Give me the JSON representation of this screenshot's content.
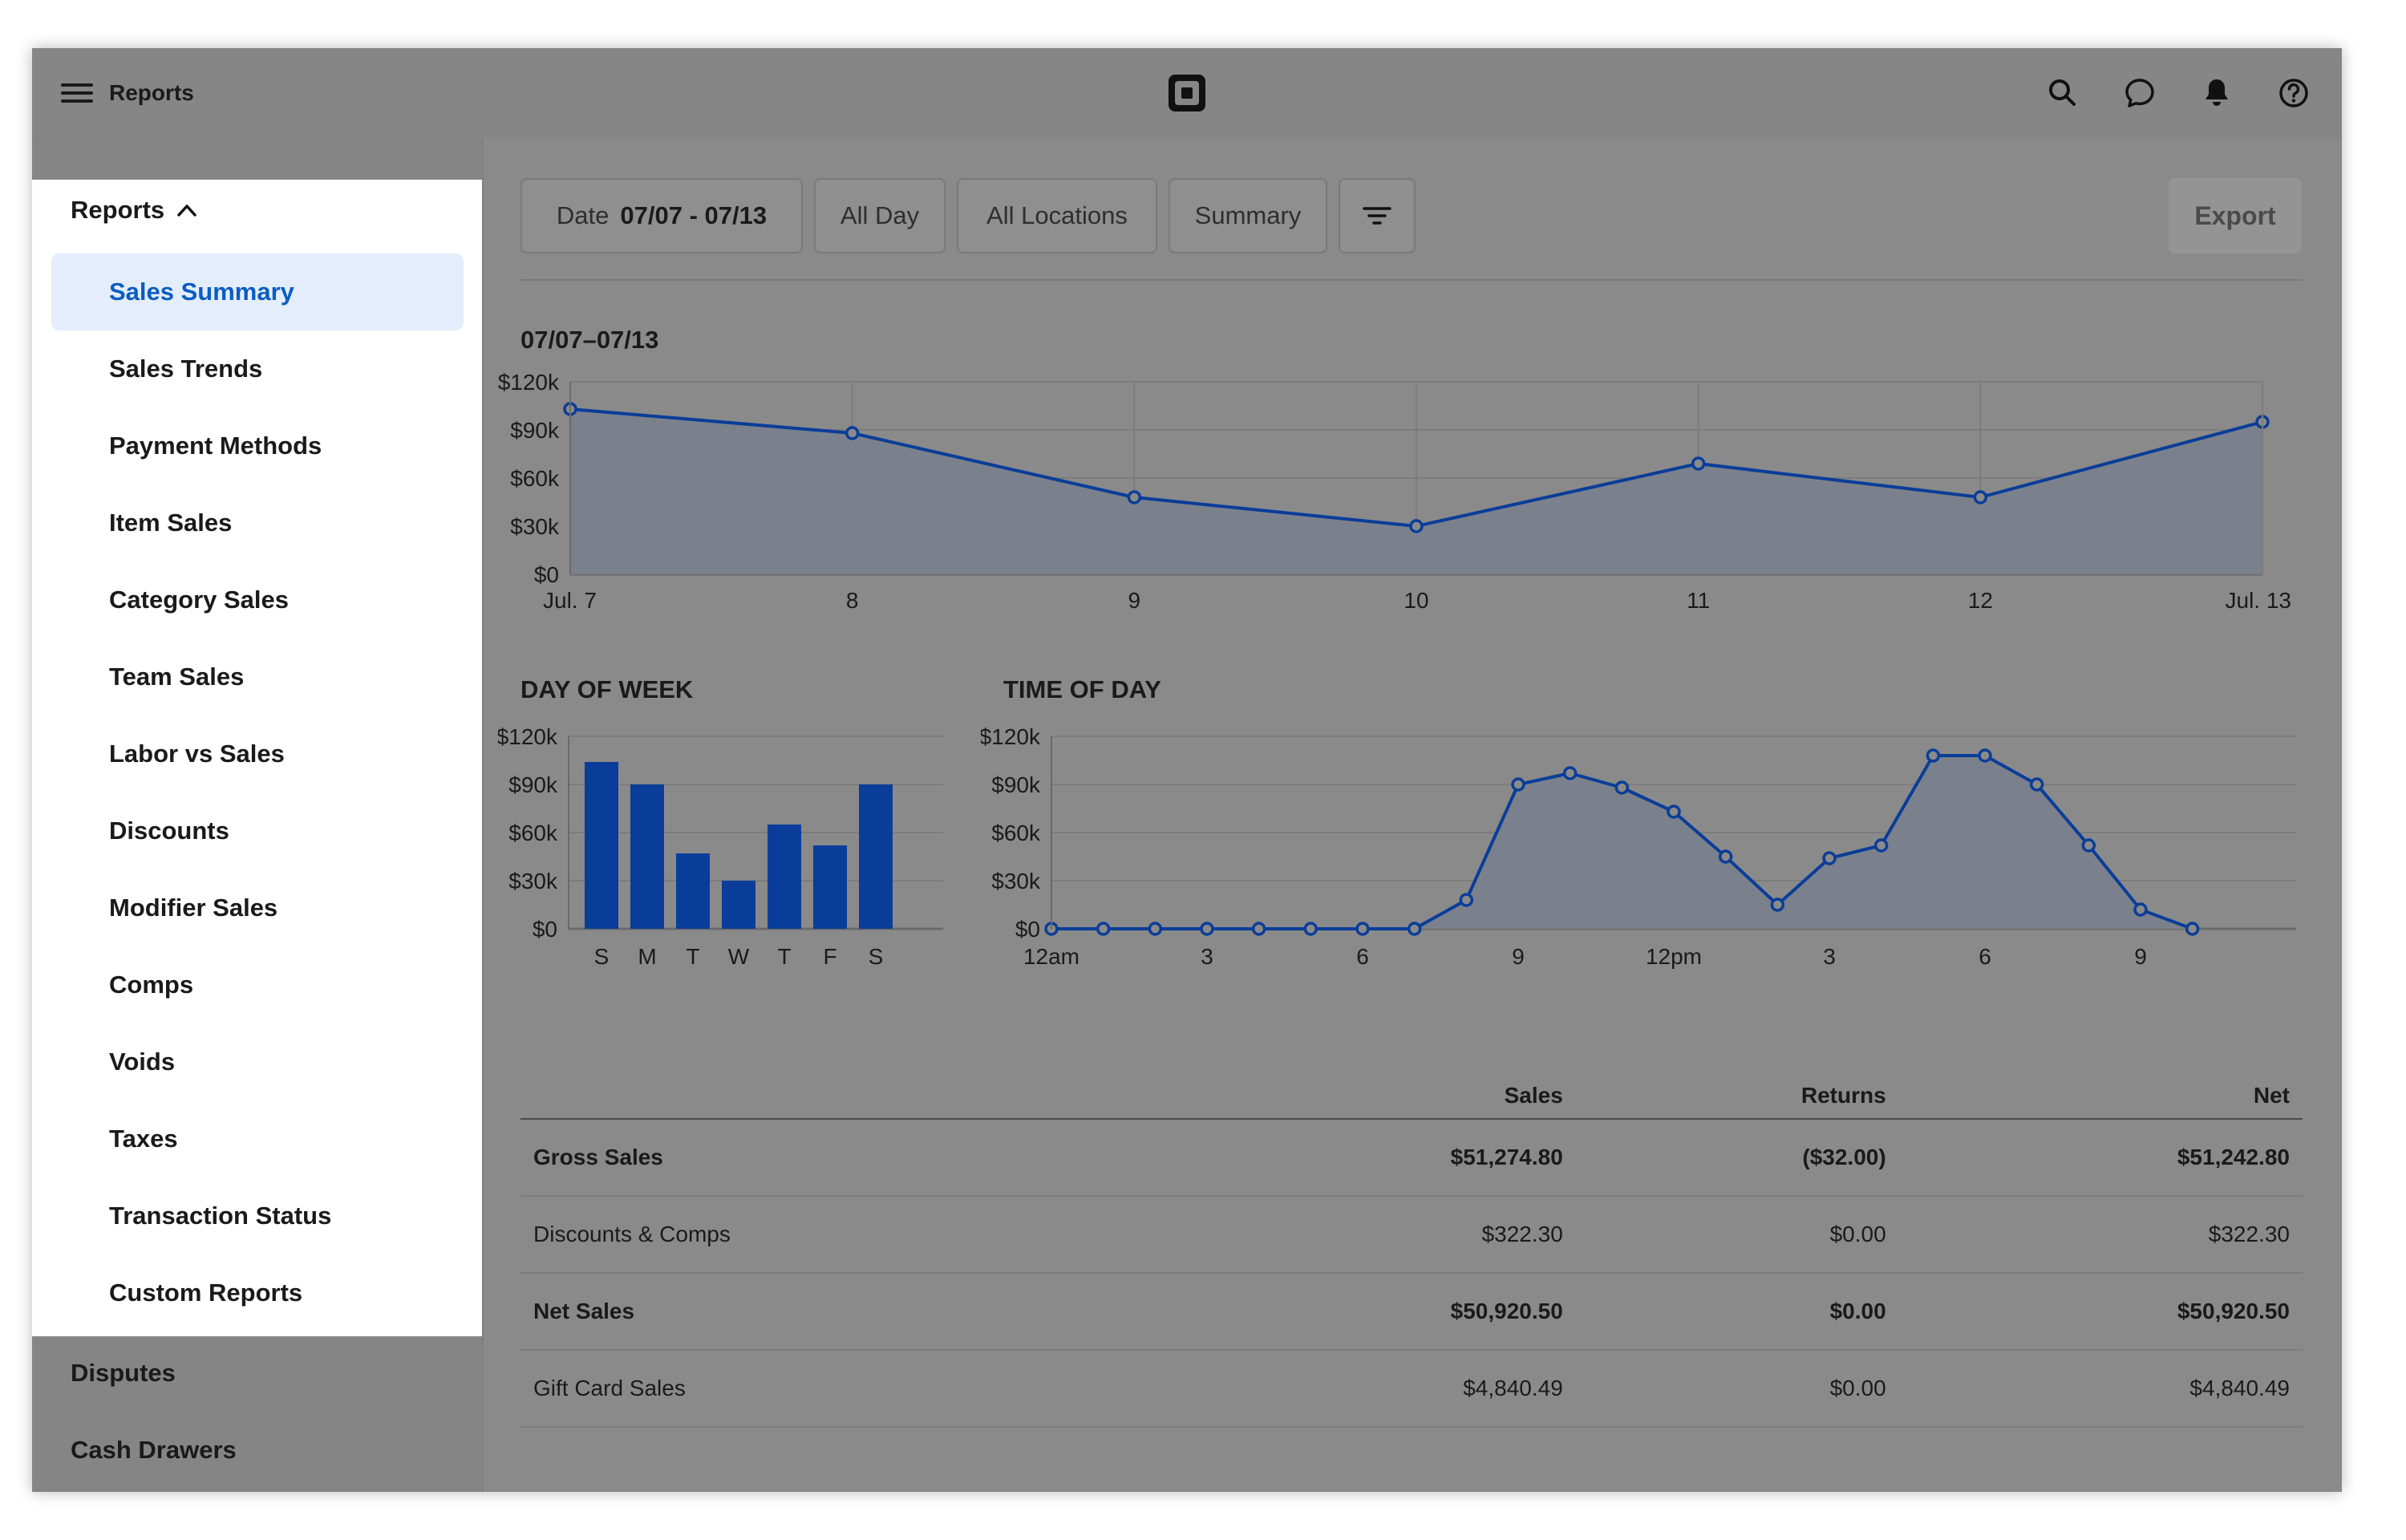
{
  "header": {
    "title": "Reports"
  },
  "sidebar": {
    "group_label": "Reports",
    "items": [
      {
        "label": "Sales Summary",
        "active": true
      },
      {
        "label": "Sales Trends"
      },
      {
        "label": "Payment Methods"
      },
      {
        "label": "Item Sales"
      },
      {
        "label": "Category Sales"
      },
      {
        "label": "Team Sales"
      },
      {
        "label": "Labor vs Sales"
      },
      {
        "label": "Discounts"
      },
      {
        "label": "Modifier Sales"
      },
      {
        "label": "Comps"
      },
      {
        "label": "Voids"
      },
      {
        "label": "Taxes"
      },
      {
        "label": "Transaction Status"
      },
      {
        "label": "Custom Reports"
      }
    ],
    "other": [
      {
        "label": "Disputes"
      },
      {
        "label": "Cash Drawers"
      }
    ]
  },
  "filters": {
    "date_label": "Date",
    "date_value": "07/07 - 07/13",
    "time": "All Day",
    "locations": "All Locations",
    "view": "Summary",
    "export": "Export"
  },
  "range_title": "07/07–07/13",
  "section_titles": {
    "day_of_week": "DAY OF WEEK",
    "time_of_day": "TIME OF DAY"
  },
  "colors": {
    "accent": "#0a3d99",
    "bars": "#0a3d99"
  },
  "chart_data": [
    {
      "type": "area",
      "title": "07/07–07/13",
      "categories": [
        "Jul. 7",
        "8",
        "9",
        "10",
        "11",
        "12",
        "Jul. 13"
      ],
      "values": [
        103000,
        88000,
        48000,
        30000,
        69000,
        48000,
        95000
      ],
      "y_ticks": [
        "$0",
        "$30k",
        "$60k",
        "$90k",
        "$120k"
      ],
      "ylim": [
        0,
        120000
      ],
      "grid": true
    },
    {
      "type": "bar",
      "title": "DAY OF WEEK",
      "categories": [
        "S",
        "M",
        "T",
        "W",
        "T",
        "F",
        "S"
      ],
      "values": [
        104000,
        90000,
        47000,
        30000,
        65000,
        52000,
        90000
      ],
      "y_ticks": [
        "$0",
        "$30k",
        "$60k",
        "$90k",
        "$120k"
      ],
      "ylim": [
        0,
        120000
      ],
      "grid": true
    },
    {
      "type": "area",
      "title": "TIME OF DAY",
      "x_tick_labels": [
        "12am",
        "3",
        "6",
        "9",
        "12pm",
        "3",
        "6",
        "9"
      ],
      "x_tick_hours": [
        0,
        3,
        6,
        9,
        12,
        15,
        18,
        21
      ],
      "x": [
        0,
        1,
        2,
        3,
        4,
        5,
        6,
        7,
        8,
        9,
        10,
        11,
        12,
        13,
        14,
        15,
        16,
        17,
        18,
        19,
        20,
        21,
        22
      ],
      "values": [
        0,
        0,
        0,
        0,
        0,
        0,
        0,
        0,
        18000,
        90000,
        97000,
        88000,
        73000,
        45000,
        15000,
        44000,
        52000,
        108000,
        108000,
        90000,
        52000,
        12000,
        0
      ],
      "y_ticks": [
        "$0",
        "$30k",
        "$60k",
        "$90k",
        "$120k"
      ],
      "ylim": [
        0,
        120000
      ],
      "grid": true
    }
  ],
  "table": {
    "columns": [
      "",
      "Sales",
      "Returns",
      "Net"
    ],
    "rows": [
      {
        "label": "Gross Sales",
        "sales": "$51,274.80",
        "returns": "($32.00)",
        "net": "$51,242.80",
        "bold": true
      },
      {
        "label": "Discounts & Comps",
        "sales": "$322.30",
        "returns": "$0.00",
        "net": "$322.30",
        "bold": false
      },
      {
        "label": "Net Sales",
        "sales": "$50,920.50",
        "returns": "$0.00",
        "net": "$50,920.50",
        "bold": true
      },
      {
        "label": "Gift Card Sales",
        "sales": "$4,840.49",
        "returns": "$0.00",
        "net": "$4,840.49",
        "bold": false
      }
    ]
  }
}
